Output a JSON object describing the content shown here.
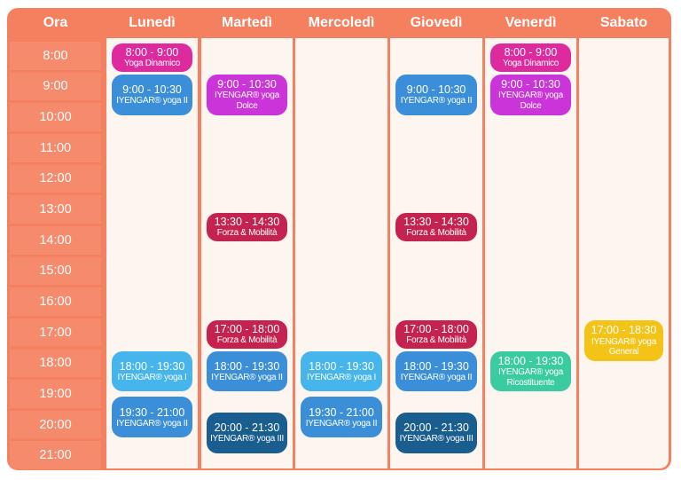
{
  "header": {
    "time_label": "Ora",
    "days": [
      "Lunedì",
      "Martedì",
      "Mercoledì",
      "Giovedì",
      "Venerdì",
      "Sabato"
    ]
  },
  "times": [
    "8:00",
    "9:00",
    "10:00",
    "11:00",
    "12:00",
    "13:00",
    "14:00",
    "15:00",
    "16:00",
    "17:00",
    "18:00",
    "19:00",
    "20:00",
    "21:00"
  ],
  "colors": {
    "frame": "#f5805f",
    "body": "#fdf5f0",
    "pink": "#dd2a9e",
    "blue": "#3a8fd8",
    "purple": "#cb34d9",
    "crimson": "#c42350",
    "cyan": "#45b5ec",
    "navy": "#1a5d8f",
    "teal": "#3bcba0",
    "yellow": "#f3c417"
  },
  "classes": [
    {
      "day": "Lunedì",
      "time": "8:00 - 9:00",
      "name": "Yoga Dinamico",
      "color": "pink"
    },
    {
      "day": "Lunedì",
      "time": "9:00 - 10:30",
      "name": "IYENGAR® yoga II",
      "color": "blue"
    },
    {
      "day": "Lunedì",
      "time": "18:00 - 19:30",
      "name": "IYENGAR® yoga I",
      "color": "cyan"
    },
    {
      "day": "Lunedì",
      "time": "19:30 - 21:00",
      "name": "IYENGAR® yoga II",
      "color": "blue"
    },
    {
      "day": "Martedì",
      "time": "9:00 - 10:30",
      "name": "IYENGAR® yoga Dolce",
      "color": "purple"
    },
    {
      "day": "Martedì",
      "time": "13:30 - 14:30",
      "name": "Forza & Mobilità",
      "color": "crimson"
    },
    {
      "day": "Martedì",
      "time": "17:00 - 18:00",
      "name": "Forza & Mobilità",
      "color": "crimson"
    },
    {
      "day": "Martedì",
      "time": "18:00 - 19:30",
      "name": "IYENGAR® yoga II",
      "color": "blue"
    },
    {
      "day": "Martedì",
      "time": "20:00 - 21:30",
      "name": "IYENGAR® yoga III",
      "color": "navy"
    },
    {
      "day": "Mercoledì",
      "time": "18:00 - 19:30",
      "name": "IYENGAR® yoga I",
      "color": "cyan"
    },
    {
      "day": "Mercoledì",
      "time": "19:30 - 21:00",
      "name": "IYENGAR® yoga II",
      "color": "blue"
    },
    {
      "day": "Giovedì",
      "time": "9:00 - 10:30",
      "name": "IYENGAR® yoga II",
      "color": "blue"
    },
    {
      "day": "Giovedì",
      "time": "13:30 - 14:30",
      "name": "Forza & Mobilità",
      "color": "crimson"
    },
    {
      "day": "Giovedì",
      "time": "17:00 - 18:00",
      "name": "Forza & Mobilità",
      "color": "crimson"
    },
    {
      "day": "Giovedì",
      "time": "18:00 - 19:30",
      "name": "IYENGAR® yoga II",
      "color": "blue"
    },
    {
      "day": "Giovedì",
      "time": "20:00 - 21:30",
      "name": "IYENGAR® yoga III",
      "color": "navy"
    },
    {
      "day": "Venerdì",
      "time": "8:00 - 9:00",
      "name": "Yoga Dinamico",
      "color": "pink"
    },
    {
      "day": "Venerdì",
      "time": "9:00 - 10:30",
      "name": "IYENGAR® yoga Dolce",
      "color": "purple"
    },
    {
      "day": "Venerdì",
      "time": "18:00 - 19:30",
      "name": "IYENGAR® yoga Ricostituente",
      "color": "teal"
    },
    {
      "day": "Sabato",
      "time": "17:00 - 18:30",
      "name": "IYENGAR® yoga General",
      "color": "yellow"
    }
  ]
}
